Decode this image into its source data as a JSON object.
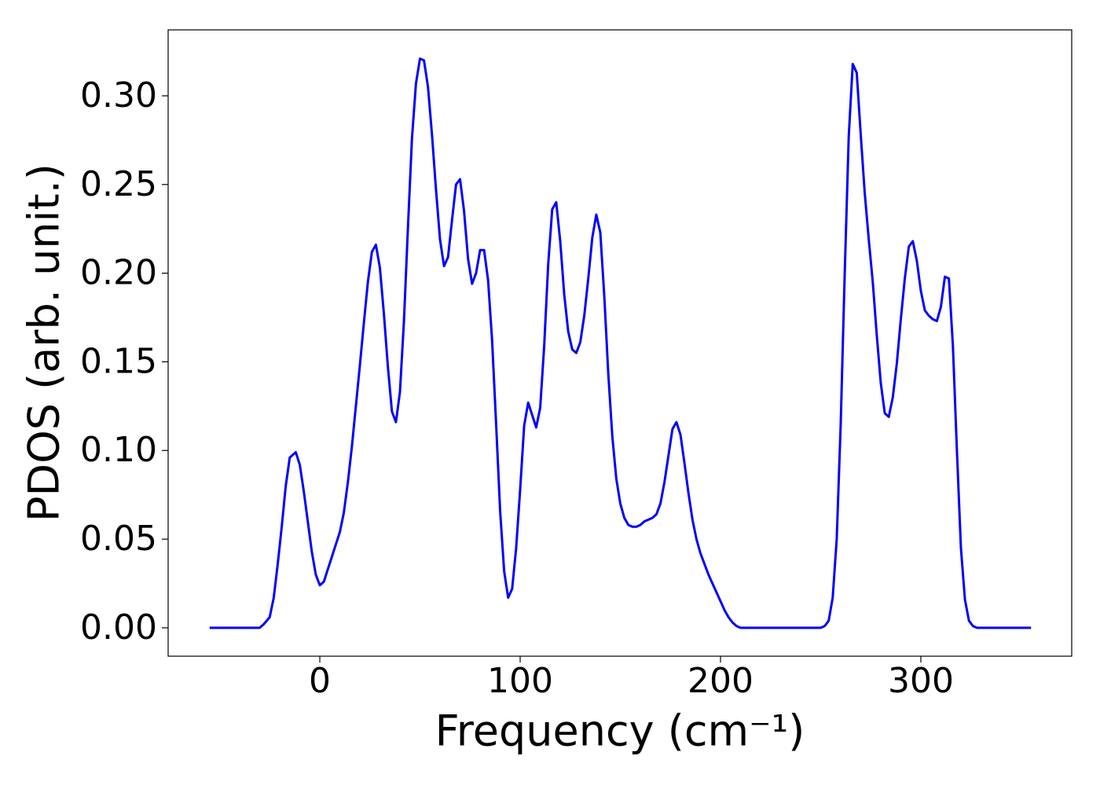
{
  "chart_data": {
    "type": "line",
    "xlabel": "Frequency (cm⁻¹)",
    "ylabel": "PDOS (arb. unit.)",
    "color": "#0000ff",
    "xlim": [
      -75.7,
      375.3
    ],
    "ylim": [
      -0.016,
      0.3372
    ],
    "xticks": [
      0,
      100,
      200,
      300
    ],
    "yticks": [
      {
        "value": 0,
        "label": "0.00"
      },
      {
        "value": 0.05,
        "label": "0.05"
      },
      {
        "value": 0.1,
        "label": "0.10"
      },
      {
        "value": 0.15,
        "label": "0.15"
      },
      {
        "value": 0.2,
        "label": "0.20"
      },
      {
        "value": 0.25,
        "label": "0.25"
      },
      {
        "value": 0.3,
        "label": "0.30"
      }
    ],
    "grid": false,
    "x": [
      -55,
      -30,
      -28,
      -25,
      -23,
      -21,
      -19,
      -17,
      -15,
      -12,
      -10,
      -8,
      -6,
      -4,
      -2,
      0,
      2,
      4,
      6,
      8,
      10,
      12,
      14,
      16,
      18,
      20,
      22,
      24,
      26,
      28,
      30,
      32,
      34,
      36,
      38,
      40,
      42,
      44,
      46,
      48,
      50,
      52,
      54,
      56,
      58,
      60,
      62,
      64,
      66,
      68,
      70,
      72,
      74,
      76,
      78,
      80,
      82,
      84,
      86,
      88,
      90,
      92,
      94,
      96,
      98,
      100,
      102,
      104,
      106,
      108,
      110,
      112,
      114,
      116,
      118,
      120,
      122,
      124,
      126,
      128,
      130,
      132,
      134,
      136,
      138,
      140,
      142,
      144,
      146,
      148,
      150,
      152,
      154,
      156,
      158,
      160,
      162,
      164,
      166,
      168,
      170,
      172,
      174,
      176,
      178,
      180,
      182,
      184,
      186,
      188,
      190,
      192,
      194,
      196,
      198,
      200,
      202,
      204,
      206,
      208,
      210,
      250,
      252,
      254,
      256,
      258,
      260,
      262,
      264,
      266,
      268,
      270,
      272,
      274,
      276,
      278,
      280,
      282,
      284,
      286,
      288,
      290,
      292,
      294,
      296,
      298,
      300,
      302,
      304,
      306,
      308,
      310,
      312,
      314,
      316,
      318,
      320,
      322,
      324,
      326,
      328,
      355
    ],
    "values": [
      0,
      0,
      0.002,
      0.006,
      0.017,
      0.036,
      0.057,
      0.08,
      0.096,
      0.099,
      0.092,
      0.077,
      0.06,
      0.043,
      0.03,
      0.024,
      0.026,
      0.033,
      0.04,
      0.047,
      0.054,
      0.065,
      0.082,
      0.102,
      0.125,
      0.148,
      0.172,
      0.195,
      0.212,
      0.216,
      0.203,
      0.177,
      0.147,
      0.122,
      0.116,
      0.133,
      0.173,
      0.226,
      0.276,
      0.307,
      0.321,
      0.32,
      0.305,
      0.278,
      0.247,
      0.219,
      0.204,
      0.209,
      0.23,
      0.25,
      0.253,
      0.235,
      0.208,
      0.194,
      0.2,
      0.213,
      0.213,
      0.196,
      0.162,
      0.115,
      0.066,
      0.032,
      0.017,
      0.022,
      0.045,
      0.078,
      0.114,
      0.127,
      0.12,
      0.113,
      0.124,
      0.159,
      0.205,
      0.236,
      0.24,
      0.218,
      0.188,
      0.167,
      0.157,
      0.155,
      0.161,
      0.176,
      0.197,
      0.22,
      0.233,
      0.223,
      0.187,
      0.143,
      0.108,
      0.084,
      0.07,
      0.062,
      0.058,
      0.057,
      0.057,
      0.058,
      0.06,
      0.061,
      0.062,
      0.064,
      0.07,
      0.082,
      0.097,
      0.112,
      0.116,
      0.109,
      0.093,
      0.076,
      0.061,
      0.05,
      0.042,
      0.036,
      0.03,
      0.025,
      0.02,
      0.015,
      0.01,
      0.006,
      0.003,
      0.001,
      0,
      0,
      0.001,
      0.004,
      0.017,
      0.05,
      0.115,
      0.2,
      0.277,
      0.318,
      0.313,
      0.278,
      0.245,
      0.219,
      0.195,
      0.165,
      0.138,
      0.121,
      0.119,
      0.13,
      0.149,
      0.174,
      0.197,
      0.215,
      0.218,
      0.207,
      0.19,
      0.179,
      0.176,
      0.174,
      0.173,
      0.181,
      0.198,
      0.197,
      0.159,
      0.1,
      0.045,
      0.016,
      0.004,
      0.001,
      0,
      0
    ]
  }
}
